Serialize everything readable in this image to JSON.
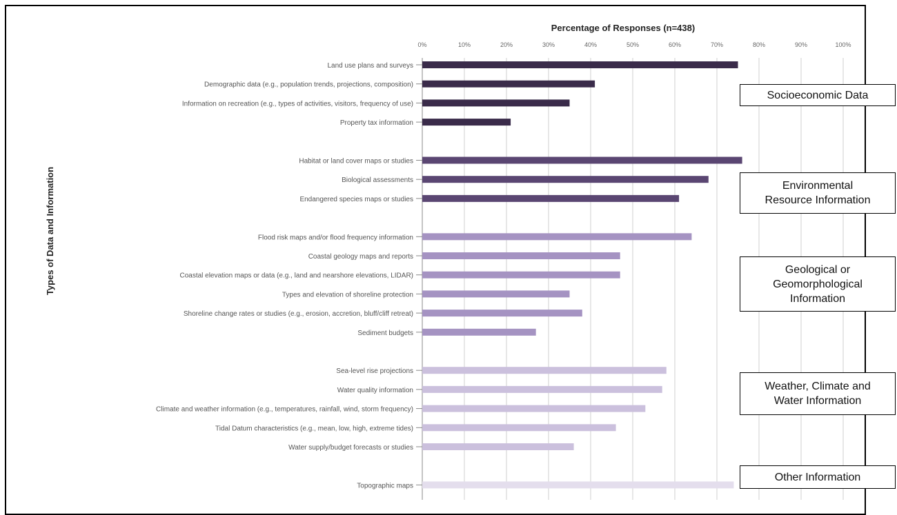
{
  "chart_data": {
    "type": "bar",
    "orientation": "horizontal",
    "title": "Percentage of Responses (n=438)",
    "ylabel": "Types of Data and Information",
    "xlabel": "",
    "xlim": [
      0,
      100
    ],
    "xticks": [
      "0%",
      "10%",
      "20%",
      "30%",
      "40%",
      "50%",
      "60%",
      "70%",
      "80%",
      "90%",
      "100%"
    ],
    "grid": true,
    "groups": [
      {
        "name": "Socioeconomic Data",
        "color": "#3a2b4a",
        "items": [
          {
            "label": "Land use plans and surveys",
            "value": 75
          },
          {
            "label": "Demographic data (e.g., population trends, projections, composition)",
            "value": 41
          },
          {
            "label": "Information on recreation (e.g., types of activities, visitors, frequency of use)",
            "value": 35
          },
          {
            "label": "Property tax information",
            "value": 21
          }
        ]
      },
      {
        "name": "Environmental Resource Information",
        "color": "#5a4672",
        "items": [
          {
            "label": "Habitat or land cover maps or studies",
            "value": 76
          },
          {
            "label": "Biological assessments",
            "value": 68
          },
          {
            "label": "Endangered species maps or studies",
            "value": 61
          }
        ]
      },
      {
        "name": "Geological or Geomorphological Information",
        "color": "#a593c2",
        "items": [
          {
            "label": "Flood risk maps and/or flood frequency information",
            "value": 64
          },
          {
            "label": "Coastal geology maps and reports",
            "value": 47
          },
          {
            "label": "Coastal elevation maps or data (e.g., land and nearshore elevations, LIDAR)",
            "value": 47
          },
          {
            "label": "Types and elevation of shoreline protection",
            "value": 35
          },
          {
            "label": "Shoreline change rates or studies (e.g., erosion, accretion, bluff/cliff retreat)",
            "value": 38
          },
          {
            "label": "Sediment budgets",
            "value": 27
          }
        ]
      },
      {
        "name": "Weather, Climate and Water Information",
        "color": "#cbc0dd",
        "items": [
          {
            "label": "Sea-level rise projections",
            "value": 58
          },
          {
            "label": "Water quality information",
            "value": 57
          },
          {
            "label": "Climate and weather information (e.g., temperatures, rainfall, wind, storm frequency)",
            "value": 53
          },
          {
            "label": "Tidal Datum characteristics (e.g., mean, low, high, extreme tides)",
            "value": 46
          },
          {
            "label": "Water supply/budget forecasts or studies",
            "value": 36
          }
        ]
      },
      {
        "name": "Other Information",
        "color": "#e4deed",
        "items": [
          {
            "label": "Topographic maps",
            "value": 74
          }
        ]
      }
    ],
    "category_boxes": [
      {
        "lines": [
          "Socioeconomic Data"
        ]
      },
      {
        "lines": [
          "Environmental",
          "Resource Information"
        ]
      },
      {
        "lines": [
          "Geological or",
          "Geomorphological",
          "Information"
        ]
      },
      {
        "lines": [
          "Weather, Climate and",
          "Water Information"
        ]
      },
      {
        "lines": [
          "Other Information"
        ]
      }
    ]
  }
}
